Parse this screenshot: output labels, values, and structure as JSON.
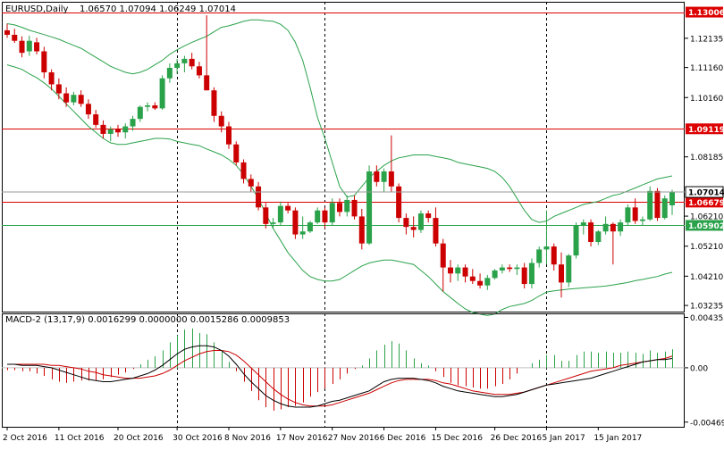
{
  "header": {
    "symbol": "EURUSD,Daily",
    "ohlc": "1.06570 1.07094 1.06249 1.07014"
  },
  "macd": {
    "title": "MACD-2 (13,17,9) 0.0016299 0.0000000 0.0015286 0.0009853"
  },
  "price_axis": {
    "ticks": [
      "1.12135",
      "1.11160",
      "1.10160",
      "1.08185",
      "1.06210",
      "1.05210",
      "1.04210",
      "1.03235"
    ],
    "ymin": 1.0303,
    "ymax": 1.1335
  },
  "macd_axis": {
    "ticks": [
      "0.004355",
      "0.00",
      "-0.004696"
    ],
    "ymin": -0.0051,
    "ymax": 0.0047
  },
  "date_axis": {
    "labels": [
      "2 Oct 2016",
      "11 Oct 2016",
      "20 Oct 2016",
      "30 Oct 2016",
      "8 Nov 2016",
      "17 Nov 2016",
      "27 Nov 2016",
      "6 Dec 2016",
      "15 Dec 2016",
      "26 Dec 2016",
      "5 Jan 2017",
      "15 Jan 2017"
    ]
  },
  "levels": [
    {
      "label": "1.13006",
      "value": 1.13006,
      "color": "#dd0000"
    },
    {
      "label": "1.09119",
      "value": 1.09119,
      "color": "#dd0000"
    },
    {
      "label": "1.06679",
      "value": 1.06679,
      "color": "#dd0000"
    },
    {
      "label": "1.05902",
      "value": 1.05902,
      "color": "#2aa24a"
    }
  ],
  "current_price": {
    "label": "1.07014",
    "value": 1.07014
  },
  "colors": {
    "bull": "#2aa24a",
    "bear": "#cc0000",
    "band": "#2aa24a",
    "support": "#2aa24a",
    "resistance": "#dd0000",
    "macd_line": "#000000",
    "signal_line": "#cc0000",
    "hist_up": "#2aa24a",
    "hist_down": "#cc0000"
  },
  "chart_data": {
    "type": "candlestick",
    "symbol": "EURUSD",
    "timeframe": "Daily",
    "ylim": [
      1.0303,
      1.1335
    ],
    "grid": false,
    "separators_dates": [
      "30 Oct 2016",
      "27 Nov 2016",
      "26 Dec 2016"
    ],
    "candles": [
      {
        "o": 1.124,
        "h": 1.1262,
        "l": 1.1215,
        "c": 1.1225
      },
      {
        "o": 1.1225,
        "h": 1.1245,
        "l": 1.1198,
        "c": 1.1205
      },
      {
        "o": 1.1205,
        "h": 1.122,
        "l": 1.115,
        "c": 1.1165
      },
      {
        "o": 1.117,
        "h": 1.1222,
        "l": 1.1155,
        "c": 1.1205
      },
      {
        "o": 1.12,
        "h": 1.1215,
        "l": 1.116,
        "c": 1.117
      },
      {
        "o": 1.117,
        "h": 1.1185,
        "l": 1.108,
        "c": 1.11
      },
      {
        "o": 1.11,
        "h": 1.111,
        "l": 1.104,
        "c": 1.106
      },
      {
        "o": 1.106,
        "h": 1.108,
        "l": 1.101,
        "c": 1.103
      },
      {
        "o": 1.103,
        "h": 1.105,
        "l": 1.0985,
        "c": 1.1
      },
      {
        "o": 1.1,
        "h": 1.1035,
        "l": 1.099,
        "c": 1.1025
      },
      {
        "o": 1.1025,
        "h": 1.104,
        "l": 1.0985,
        "c": 1.0995
      },
      {
        "o": 1.0995,
        "h": 1.101,
        "l": 1.0945,
        "c": 1.096
      },
      {
        "o": 1.096,
        "h": 1.0975,
        "l": 1.0915,
        "c": 1.0925
      },
      {
        "o": 1.0925,
        "h": 1.094,
        "l": 1.088,
        "c": 1.0895
      },
      {
        "o": 1.0895,
        "h": 1.092,
        "l": 1.087,
        "c": 1.091
      },
      {
        "o": 1.091,
        "h": 1.0925,
        "l": 1.0885,
        "c": 1.09
      },
      {
        "o": 1.09,
        "h": 1.093,
        "l": 1.088,
        "c": 1.092
      },
      {
        "o": 1.092,
        "h": 1.0955,
        "l": 1.0905,
        "c": 1.0945
      },
      {
        "o": 1.0945,
        "h": 1.099,
        "l": 1.0935,
        "c": 1.0985
      },
      {
        "o": 1.0985,
        "h": 1.1,
        "l": 1.097,
        "c": 1.099
      },
      {
        "o": 1.099,
        "h": 1.1,
        "l": 1.0975,
        "c": 1.098
      },
      {
        "o": 1.098,
        "h": 1.109,
        "l": 1.0975,
        "c": 1.108
      },
      {
        "o": 1.108,
        "h": 1.113,
        "l": 1.1065,
        "c": 1.1115
      },
      {
        "o": 1.1115,
        "h": 1.1145,
        "l": 1.1095,
        "c": 1.113
      },
      {
        "o": 1.113,
        "h": 1.1155,
        "l": 1.11,
        "c": 1.1145
      },
      {
        "o": 1.1145,
        "h": 1.1165,
        "l": 1.111,
        "c": 1.112
      },
      {
        "o": 1.112,
        "h": 1.1135,
        "l": 1.108,
        "c": 1.109
      },
      {
        "o": 1.109,
        "h": 1.129,
        "l": 1.104,
        "c": 1.104
      },
      {
        "o": 1.104,
        "h": 1.105,
        "l": 1.0935,
        "c": 1.0955
      },
      {
        "o": 1.0955,
        "h": 1.097,
        "l": 1.09,
        "c": 1.092
      },
      {
        "o": 1.092,
        "h": 1.0935,
        "l": 1.0845,
        "c": 1.086
      },
      {
        "o": 1.086,
        "h": 1.087,
        "l": 1.079,
        "c": 1.08
      },
      {
        "o": 1.08,
        "h": 1.081,
        "l": 1.073,
        "c": 1.0745
      },
      {
        "o": 1.0745,
        "h": 1.076,
        "l": 1.07,
        "c": 1.072
      },
      {
        "o": 1.072,
        "h": 1.0735,
        "l": 1.064,
        "c": 1.065
      },
      {
        "o": 1.065,
        "h": 1.0665,
        "l": 1.058,
        "c": 1.0595
      },
      {
        "o": 1.0595,
        "h": 1.0615,
        "l": 1.058,
        "c": 1.06
      },
      {
        "o": 1.06,
        "h": 1.067,
        "l": 1.059,
        "c": 1.0655
      },
      {
        "o": 1.0655,
        "h": 1.0665,
        "l": 1.063,
        "c": 1.064
      },
      {
        "o": 1.064,
        "h": 1.065,
        "l": 1.0545,
        "c": 1.056
      },
      {
        "o": 1.056,
        "h": 1.062,
        "l": 1.0545,
        "c": 1.057
      },
      {
        "o": 1.057,
        "h": 1.0605,
        "l": 1.0565,
        "c": 1.06
      },
      {
        "o": 1.06,
        "h": 1.065,
        "l": 1.0595,
        "c": 1.064
      },
      {
        "o": 1.064,
        "h": 1.065,
        "l": 1.058,
        "c": 1.06
      },
      {
        "o": 1.06,
        "h": 1.068,
        "l": 1.059,
        "c": 1.0665
      },
      {
        "o": 1.0665,
        "h": 1.068,
        "l": 1.062,
        "c": 1.0635
      },
      {
        "o": 1.0635,
        "h": 1.069,
        "l": 1.062,
        "c": 1.0675
      },
      {
        "o": 1.0675,
        "h": 1.069,
        "l": 1.061,
        "c": 1.062
      },
      {
        "o": 1.062,
        "h": 1.0645,
        "l": 1.051,
        "c": 1.053
      },
      {
        "o": 1.053,
        "h": 1.079,
        "l": 1.0525,
        "c": 1.077
      },
      {
        "o": 1.077,
        "h": 1.079,
        "l": 1.072,
        "c": 1.0735
      },
      {
        "o": 1.0735,
        "h": 1.078,
        "l": 1.07,
        "c": 1.077
      },
      {
        "o": 1.077,
        "h": 1.089,
        "l": 1.07,
        "c": 1.072
      },
      {
        "o": 1.072,
        "h": 1.073,
        "l": 1.06,
        "c": 1.0615
      },
      {
        "o": 1.0615,
        "h": 1.063,
        "l": 1.056,
        "c": 1.0585
      },
      {
        "o": 1.0585,
        "h": 1.062,
        "l": 1.055,
        "c": 1.0575
      },
      {
        "o": 1.0575,
        "h": 1.064,
        "l": 1.0565,
        "c": 1.063
      },
      {
        "o": 1.063,
        "h": 1.064,
        "l": 1.06,
        "c": 1.0615
      },
      {
        "o": 1.0615,
        "h": 1.065,
        "l": 1.052,
        "c": 1.053
      },
      {
        "o": 1.053,
        "h": 1.0545,
        "l": 1.037,
        "c": 1.045
      },
      {
        "o": 1.045,
        "h": 1.0475,
        "l": 1.04,
        "c": 1.043
      },
      {
        "o": 1.043,
        "h": 1.046,
        "l": 1.0405,
        "c": 1.045
      },
      {
        "o": 1.045,
        "h": 1.046,
        "l": 1.04,
        "c": 1.042
      },
      {
        "o": 1.042,
        "h": 1.0445,
        "l": 1.0395,
        "c": 1.0405
      },
      {
        "o": 1.0405,
        "h": 1.043,
        "l": 1.038,
        "c": 1.039
      },
      {
        "o": 1.039,
        "h": 1.0425,
        "l": 1.0375,
        "c": 1.0415
      },
      {
        "o": 1.0415,
        "h": 1.0445,
        "l": 1.041,
        "c": 1.044
      },
      {
        "o": 1.044,
        "h": 1.046,
        "l": 1.043,
        "c": 1.045
      },
      {
        "o": 1.045,
        "h": 1.046,
        "l": 1.0435,
        "c": 1.0445
      },
      {
        "o": 1.0445,
        "h": 1.046,
        "l": 1.0425,
        "c": 1.045
      },
      {
        "o": 1.045,
        "h": 1.0465,
        "l": 1.038,
        "c": 1.0395
      },
      {
        "o": 1.0395,
        "h": 1.048,
        "l": 1.038,
        "c": 1.0465
      },
      {
        "o": 1.0465,
        "h": 1.052,
        "l": 1.045,
        "c": 1.051
      },
      {
        "o": 1.051,
        "h": 1.064,
        "l": 1.046,
        "c": 1.052
      },
      {
        "o": 1.052,
        "h": 1.053,
        "l": 1.044,
        "c": 1.046
      },
      {
        "o": 1.046,
        "h": 1.05,
        "l": 1.035,
        "c": 1.04
      },
      {
        "o": 1.04,
        "h": 1.0495,
        "l": 1.0385,
        "c": 1.049
      },
      {
        "o": 1.049,
        "h": 1.06,
        "l": 1.048,
        "c": 1.059
      },
      {
        "o": 1.059,
        "h": 1.061,
        "l": 1.056,
        "c": 1.06
      },
      {
        "o": 1.06,
        "h": 1.061,
        "l": 1.052,
        "c": 1.0535
      },
      {
        "o": 1.0535,
        "h": 1.0575,
        "l": 1.0525,
        "c": 1.057
      },
      {
        "o": 1.057,
        "h": 1.062,
        "l": 1.056,
        "c": 1.0595
      },
      {
        "o": 1.0595,
        "h": 1.06,
        "l": 1.046,
        "c": 1.057
      },
      {
        "o": 1.057,
        "h": 1.061,
        "l": 1.0555,
        "c": 1.06
      },
      {
        "o": 1.06,
        "h": 1.066,
        "l": 1.059,
        "c": 1.065
      },
      {
        "o": 1.065,
        "h": 1.068,
        "l": 1.0595,
        "c": 1.0605
      },
      {
        "o": 1.0605,
        "h": 1.062,
        "l": 1.059,
        "c": 1.061
      },
      {
        "o": 1.061,
        "h": 1.072,
        "l": 1.0605,
        "c": 1.0705
      },
      {
        "o": 1.0705,
        "h": 1.0715,
        "l": 1.0605,
        "c": 1.0615
      },
      {
        "o": 1.0615,
        "h": 1.069,
        "l": 1.061,
        "c": 1.068
      },
      {
        "o": 1.0657,
        "h": 1.0709,
        "l": 1.0625,
        "c": 1.0701
      }
    ],
    "bands": {
      "upper": [
        1.1262,
        1.1258,
        1.125,
        1.124,
        1.1233,
        1.1226,
        1.1218,
        1.121,
        1.12,
        1.119,
        1.118,
        1.1165,
        1.115,
        1.1135,
        1.112,
        1.111,
        1.11,
        1.1095,
        1.11,
        1.111,
        1.1125,
        1.114,
        1.116,
        1.1175,
        1.1188,
        1.12,
        1.121,
        1.122,
        1.1235,
        1.125,
        1.1255,
        1.1262,
        1.127,
        1.1275,
        1.1275,
        1.1272,
        1.127,
        1.126,
        1.124,
        1.12,
        1.114,
        1.105,
        1.095,
        1.088,
        1.08,
        1.072,
        1.0685,
        1.069,
        1.072,
        1.075,
        1.077,
        1.079,
        1.0805,
        1.0815,
        1.082,
        1.0825,
        1.0825,
        1.0825,
        1.082,
        1.0815,
        1.081,
        1.08,
        1.0795,
        1.079,
        1.0785,
        1.078,
        1.077,
        1.075,
        1.072,
        1.068,
        1.064,
        1.061,
        1.06,
        1.0605,
        1.062,
        1.063,
        1.064,
        1.065,
        1.066,
        1.0665,
        1.067,
        1.068,
        1.069,
        1.0695,
        1.0705,
        1.0715,
        1.0725,
        1.0735,
        1.0745,
        1.075,
        1.0755
      ],
      "lower": [
        1.1125,
        1.1118,
        1.111,
        1.1095,
        1.1082,
        1.1065,
        1.1045,
        1.102,
        1.0995,
        1.097,
        1.0945,
        1.092,
        1.09,
        1.088,
        1.0865,
        1.086,
        1.086,
        1.0865,
        1.087,
        1.0875,
        1.088,
        1.088,
        1.0878,
        1.087,
        1.0865,
        1.086,
        1.0856,
        1.0845,
        1.0835,
        1.0825,
        1.081,
        1.079,
        1.076,
        1.072,
        1.068,
        1.063,
        1.058,
        1.054,
        1.05,
        1.047,
        1.044,
        1.042,
        1.041,
        1.0405,
        1.0405,
        1.041,
        1.0425,
        1.044,
        1.0455,
        1.0465,
        1.047,
        1.0475,
        1.0475,
        1.047,
        1.0465,
        1.046,
        1.044,
        1.042,
        1.0395,
        1.037,
        1.035,
        1.033,
        1.0312,
        1.03,
        1.0295,
        1.029,
        1.0295,
        1.031,
        1.032,
        1.0325,
        1.033,
        1.034,
        1.0355,
        1.0368,
        1.0372,
        1.0375,
        1.0378,
        1.038,
        1.0382,
        1.0384,
        1.0386,
        1.0388,
        1.0392,
        1.0396,
        1.04,
        1.0406,
        1.041,
        1.0415,
        1.042,
        1.0428,
        1.0434
      ]
    },
    "macd": {
      "histogram": [
        -0.0002,
        -0.0002,
        -0.0003,
        -0.0003,
        -0.0005,
        -0.0007,
        -0.001,
        -0.0012,
        -0.0013,
        -0.0012,
        -0.0011,
        -0.0011,
        -0.0011,
        -0.001,
        -0.0008,
        -0.0006,
        -0.0004,
        -0.0001,
        0.0003,
        0.0007,
        0.001,
        0.0015,
        0.0022,
        0.0028,
        0.0033,
        0.0034,
        0.003,
        0.0029,
        0.0022,
        0.0014,
        0.0005,
        -0.0003,
        -0.0012,
        -0.002,
        -0.0028,
        -0.0034,
        -0.0037,
        -0.0036,
        -0.0034,
        -0.0033,
        -0.003,
        -0.0025,
        -0.0021,
        -0.0018,
        -0.0014,
        -0.001,
        -0.0005,
        -0.0001,
        0.0002,
        0.0008,
        0.0015,
        0.002,
        0.0023,
        0.0021,
        0.0015,
        0.0008,
        0.0004,
        0.0002,
        -0.0003,
        -0.0008,
        -0.0013,
        -0.0015,
        -0.0016,
        -0.0017,
        -0.0018,
        -0.0018,
        -0.0016,
        -0.0014,
        -0.001,
        -0.0005,
        0.0,
        0.0004,
        0.0007,
        0.0011,
        0.0011,
        0.0006,
        0.0006,
        0.0011,
        0.0014,
        0.0014,
        0.0013,
        0.0014,
        0.0013,
        0.0013,
        0.0014,
        0.0013,
        0.0012,
        0.0015,
        0.0013,
        0.0014,
        0.0016
      ],
      "macd_line": [
        0.0003,
        0.0003,
        0.0002,
        0.0002,
        0.0002,
        0.0001,
        0.0,
        -0.0002,
        -0.0004,
        -0.0006,
        -0.0008,
        -0.001,
        -0.0011,
        -0.0012,
        -0.0012,
        -0.0011,
        -0.001,
        -0.0009,
        -0.0007,
        -0.0005,
        -0.0002,
        0.0002,
        0.0007,
        0.0012,
        0.0016,
        0.0018,
        0.0019,
        0.0019,
        0.0018,
        0.0015,
        0.001,
        0.0003,
        -0.0005,
        -0.0012,
        -0.0018,
        -0.0024,
        -0.0028,
        -0.0031,
        -0.0033,
        -0.0034,
        -0.0034,
        -0.0034,
        -0.0033,
        -0.0031,
        -0.0029,
        -0.0028,
        -0.0026,
        -0.0024,
        -0.0022,
        -0.002,
        -0.0016,
        -0.0012,
        -0.001,
        -0.0009,
        -0.0009,
        -0.0009,
        -0.001,
        -0.0011,
        -0.0013,
        -0.0016,
        -0.0018,
        -0.002,
        -0.0021,
        -0.0022,
        -0.0023,
        -0.0024,
        -0.0025,
        -0.0025,
        -0.0024,
        -0.0023,
        -0.0021,
        -0.0019,
        -0.0017,
        -0.0015,
        -0.0014,
        -0.0013,
        -0.0012,
        -0.0011,
        -0.001,
        -0.0009,
        -0.0007,
        -0.0005,
        -0.0003,
        -0.0001,
        0.0001,
        0.0003,
        0.0005,
        0.0006,
        0.0007,
        0.0007,
        0.0008
      ],
      "signal_line": [
        0.0003,
        0.0003,
        0.0003,
        0.0003,
        0.0003,
        0.0003,
        0.0002,
        0.0002,
        0.0001,
        0.0,
        -0.0001,
        -0.0003,
        -0.0004,
        -0.0006,
        -0.0007,
        -0.0008,
        -0.0009,
        -0.0009,
        -0.0009,
        -0.0008,
        -0.0007,
        -0.0005,
        -0.0002,
        0.0002,
        0.0006,
        0.0009,
        0.0012,
        0.0014,
        0.0015,
        0.0015,
        0.0014,
        0.0011,
        0.0006,
        0.0,
        -0.0006,
        -0.0012,
        -0.0018,
        -0.0023,
        -0.0027,
        -0.003,
        -0.0032,
        -0.0033,
        -0.0033,
        -0.0033,
        -0.0032,
        -0.003,
        -0.0028,
        -0.0026,
        -0.0024,
        -0.0022,
        -0.0019,
        -0.0016,
        -0.0013,
        -0.0011,
        -0.001,
        -0.001,
        -0.001,
        -0.001,
        -0.0011,
        -0.0013,
        -0.0014,
        -0.0016,
        -0.0018,
        -0.002,
        -0.0021,
        -0.0022,
        -0.0023,
        -0.0023,
        -0.0023,
        -0.0022,
        -0.0021,
        -0.0019,
        -0.0017,
        -0.0015,
        -0.0013,
        -0.0011,
        -0.0009,
        -0.0007,
        -0.0005,
        -0.0003,
        -0.0002,
        -0.0001,
        0.0,
        0.0002,
        0.0003,
        0.0004,
        0.0005,
        0.0006,
        0.0007,
        0.0008,
        0.001
      ]
    }
  }
}
